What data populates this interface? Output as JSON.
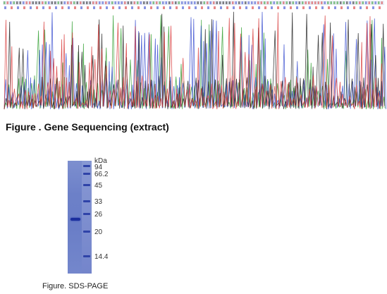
{
  "sequencing_figure": {
    "caption": "Figure . Gene Sequencing (extract)",
    "trace_colors": {
      "A": "#2e9e2e",
      "C": "#3a4fd0",
      "G": "#222222",
      "T": "#d83a3a"
    }
  },
  "sds_page_figure": {
    "caption": "Figure. SDS-PAGE",
    "unit_label": "kDa",
    "marker_labels": [
      "94",
      "66.2",
      "45",
      "33",
      "26",
      "20",
      "14.4"
    ],
    "gel_colors": {
      "lane": "#6c80c8",
      "band": "#1b2f9e"
    }
  }
}
